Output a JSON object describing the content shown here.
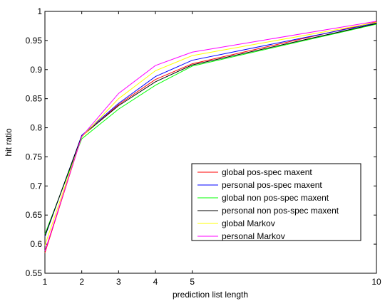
{
  "chart_data": {
    "type": "line",
    "xlabel": "prediction list length",
    "ylabel": "hit ratio",
    "xlim": [
      1,
      10
    ],
    "ylim": [
      0.55,
      1.0
    ],
    "x_ticks": [
      "1",
      "2",
      "3",
      "4",
      "5",
      "10"
    ],
    "y_ticks": [
      "0.55",
      "0.6",
      "0.65",
      "0.7",
      "0.75",
      "0.8",
      "0.85",
      "0.9",
      "0.95",
      "1"
    ],
    "x": [
      1,
      2,
      3,
      4,
      5,
      10
    ],
    "grid": false,
    "legend_position": "right",
    "series": [
      {
        "name": "global pos-spec maxent",
        "color": "#ff0000",
        "values": [
          0.585,
          0.785,
          0.84,
          0.883,
          0.91,
          0.982
        ]
      },
      {
        "name": "personal pos-spec maxent",
        "color": "#0000ff",
        "values": [
          0.613,
          0.787,
          0.842,
          0.888,
          0.916,
          0.98
        ]
      },
      {
        "name": "global non pos-spec maxent",
        "color": "#00ff00",
        "values": [
          0.617,
          0.781,
          0.832,
          0.873,
          0.906,
          0.978
        ]
      },
      {
        "name": "personal non pos-spec maxent",
        "color": "#000000",
        "values": [
          0.614,
          0.786,
          0.838,
          0.879,
          0.908,
          0.979
        ]
      },
      {
        "name": "global Markov",
        "color": "#ffff00",
        "values": [
          0.598,
          0.784,
          0.85,
          0.898,
          0.924,
          0.981
        ]
      },
      {
        "name": "personal Markov",
        "color": "#ff00ff",
        "values": [
          0.588,
          0.785,
          0.859,
          0.907,
          0.93,
          0.983
        ]
      }
    ]
  }
}
